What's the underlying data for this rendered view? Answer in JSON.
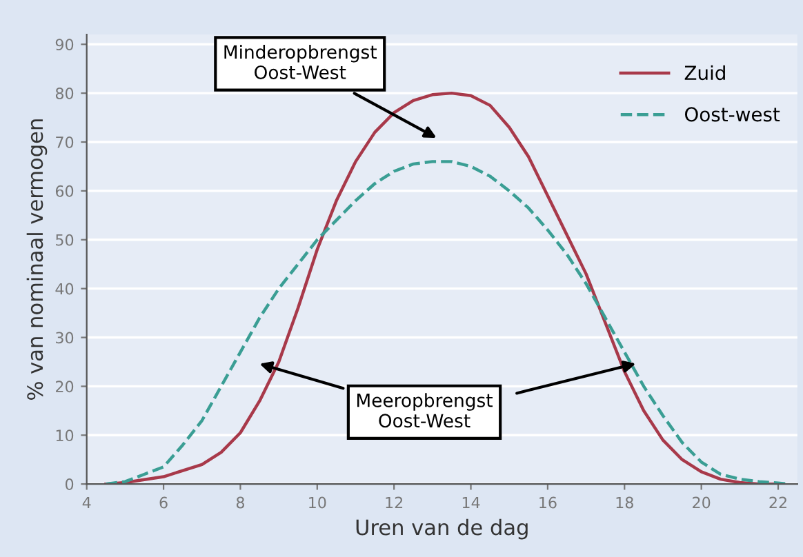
{
  "chart_data": {
    "type": "line",
    "xlabel": "Uren van de dag",
    "ylabel": "% van nominaal vermogen",
    "series": [
      {
        "name": "Zuid",
        "color": "#a8394a",
        "line_style": "solid",
        "x": [
          4.5,
          5,
          6,
          7,
          7.5,
          8,
          8.5,
          9,
          9.5,
          10,
          10.5,
          11,
          11.5,
          12,
          12.5,
          13,
          13.5,
          14,
          14.5,
          15,
          15.5,
          16,
          16.5,
          17,
          17.5,
          18,
          18.5,
          19,
          19.5,
          20,
          20.5,
          21,
          21.5,
          22
        ],
        "values": [
          0,
          0.3,
          1.5,
          4,
          6.5,
          10.5,
          17,
          25,
          36,
          48,
          58,
          66,
          72,
          76,
          78.5,
          79.7,
          80,
          79.5,
          77.5,
          73,
          67,
          59,
          51,
          43,
          33,
          23,
          15,
          9,
          5,
          2.5,
          1,
          0.3,
          0,
          0
        ]
      },
      {
        "name": "Oost-west",
        "color": "#3a9e94",
        "line_style": "dashed",
        "x": [
          4.5,
          5,
          5.5,
          6,
          6.5,
          7,
          7.5,
          8,
          8.5,
          9,
          9.5,
          10,
          10.5,
          11,
          11.5,
          12,
          12.5,
          13,
          13.5,
          14,
          14.5,
          15,
          15.5,
          16,
          16.5,
          17,
          17.5,
          18,
          18.5,
          19,
          19.5,
          20,
          20.5,
          21,
          21.5,
          22,
          22.3
        ],
        "values": [
          0,
          0.5,
          2,
          3.5,
          8,
          13,
          20,
          27,
          34,
          40,
          45,
          50,
          54,
          58,
          61.5,
          64,
          65.5,
          66,
          66,
          65,
          63,
          60,
          56.5,
          52,
          47,
          41,
          34,
          27,
          20,
          14,
          8.5,
          4.5,
          2,
          1,
          0.5,
          0.2,
          0
        ]
      }
    ],
    "annotations": [
      "Minderopbrengst\nOost-West",
      "Meeropbrengst\nOost-West"
    ],
    "xlim": [
      4,
      22.5
    ],
    "ylim": [
      0,
      92
    ],
    "xticks": [
      4,
      6,
      8,
      10,
      12,
      14,
      16,
      18,
      20,
      22
    ],
    "yticks": [
      0,
      10,
      20,
      30,
      40,
      50,
      60,
      70,
      80,
      90
    ],
    "grid": "y",
    "legend": "top right",
    "marker": "none"
  }
}
